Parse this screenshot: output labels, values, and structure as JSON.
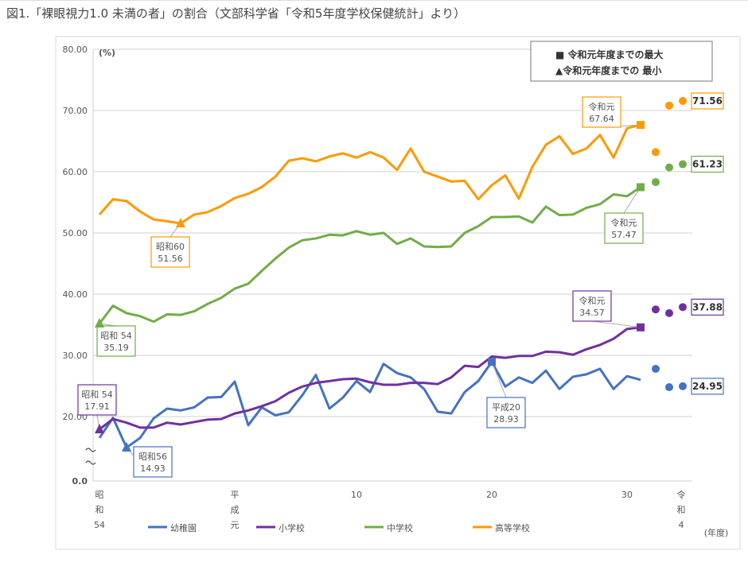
{
  "title": "図1.「裸眼視力1.0 未満の者」の割合（文部科学省「令和5年度学校保健統計」より）",
  "chart_data": {
    "type": "line",
    "title": "「裸眼視力1.0 未満の者」の割合",
    "ylabel": "(%)",
    "xlabel": "(年度)",
    "ylim": [
      0,
      80
    ],
    "axis_break": "0〜20",
    "yticks": [
      "80.00",
      "70.00",
      "60.00",
      "50.00",
      "40.00",
      "30.00",
      "20.00",
      "0.0"
    ],
    "ytick_values": [
      80,
      70,
      60,
      50,
      40,
      30,
      20,
      0
    ],
    "x_years": [
      1979,
      1980,
      1981,
      1982,
      1983,
      1984,
      1985,
      1986,
      1987,
      1988,
      1989,
      1990,
      1991,
      1992,
      1993,
      1994,
      1995,
      1996,
      1997,
      1998,
      1999,
      2000,
      2001,
      2002,
      2003,
      2004,
      2005,
      2006,
      2007,
      2008,
      2009,
      2010,
      2011,
      2012,
      2013,
      2014,
      2015,
      2016,
      2017,
      2018,
      2019,
      2020,
      2021,
      2022
    ],
    "xticks": [
      {
        "year": 1979,
        "label": [
          "昭",
          "和",
          "54"
        ]
      },
      {
        "year": 1989,
        "label": [
          "平",
          "成",
          "元"
        ]
      },
      {
        "year": 1998,
        "label": [
          "10"
        ]
      },
      {
        "year": 2008,
        "label": [
          "20"
        ]
      },
      {
        "year": 2018,
        "label": [
          "30"
        ]
      },
      {
        "year": 2022,
        "label": [
          "令",
          "和",
          "4"
        ]
      }
    ],
    "grid": true,
    "legend_position": "bottom",
    "marker_legend": {
      "max": "■ 令和元年度までの最大",
      "min": "▲令和元年度までの 最小"
    },
    "series": [
      {
        "name": "幼稚園",
        "color": "#4472C4",
        "values": [
          16.5,
          19.8,
          14.93,
          16.5,
          19.7,
          21.3,
          21.0,
          21.5,
          23.1,
          23.2,
          25.7,
          18.6,
          21.5,
          20.2,
          20.7,
          23.5,
          26.8,
          21.3,
          23.1,
          25.8,
          24.0,
          28.6,
          27.1,
          26.4,
          24.5,
          20.8,
          20.5,
          24.0,
          25.8,
          28.93,
          24.9,
          26.4,
          25.5,
          27.5,
          24.5,
          26.5,
          26.9,
          27.8,
          24.5,
          26.6,
          26.0
        ],
        "later": [
          27.8,
          24.8,
          24.95
        ]
      },
      {
        "name": "小学校",
        "color": "#7030A0",
        "values": [
          17.91,
          19.6,
          19.0,
          18.2,
          18.2,
          19.0,
          18.7,
          19.1,
          19.5,
          19.6,
          20.5,
          21.0,
          21.7,
          22.5,
          23.9,
          24.9,
          25.5,
          25.8,
          26.1,
          26.2,
          25.6,
          25.2,
          25.2,
          25.5,
          25.5,
          25.3,
          26.4,
          28.3,
          28.1,
          29.8,
          29.6,
          29.9,
          29.9,
          30.6,
          30.5,
          30.1,
          31.0,
          31.7,
          32.7,
          34.3,
          34.57
        ],
        "later": [
          37.5,
          36.9,
          37.88
        ]
      },
      {
        "name": "中学校",
        "color": "#70AD47",
        "values": [
          35.19,
          38.1,
          36.9,
          36.4,
          35.5,
          36.7,
          36.6,
          37.2,
          38.4,
          39.4,
          40.9,
          41.7,
          43.8,
          45.8,
          47.6,
          48.8,
          49.1,
          49.7,
          49.6,
          50.3,
          49.7,
          50.0,
          48.2,
          49.1,
          47.8,
          47.7,
          47.8,
          50.0,
          51.1,
          52.6,
          52.6,
          52.7,
          51.7,
          54.3,
          52.9,
          53.0,
          54.1,
          54.7,
          56.3,
          56.0,
          57.47
        ],
        "later": [
          58.3,
          60.7,
          61.23
        ]
      },
      {
        "name": "高等学校",
        "color": "#FF9900",
        "values": [
          53.0,
          55.5,
          55.2,
          53.5,
          52.2,
          51.9,
          51.56,
          53.0,
          53.4,
          54.4,
          55.7,
          56.4,
          57.5,
          59.2,
          61.8,
          62.2,
          61.7,
          62.5,
          63.0,
          62.3,
          63.2,
          62.3,
          60.3,
          63.8,
          60.0,
          59.2,
          58.4,
          58.5,
          55.5,
          57.8,
          59.4,
          55.6,
          60.8,
          64.4,
          65.8,
          62.9,
          63.8,
          66.0,
          62.3,
          67.1,
          67.64
        ],
        "later": [
          63.2,
          70.8,
          71.56
        ]
      }
    ],
    "annotations": [
      {
        "series": 3,
        "year": 1985,
        "marker": "min",
        "line1": "昭和60",
        "line2": "51.56"
      },
      {
        "series": 3,
        "year": 2019,
        "marker": "max",
        "line1": "令和元",
        "line2": "67.64"
      },
      {
        "series": 2,
        "year": 2019,
        "marker": "max",
        "line1": "令和元",
        "line2": "57.47"
      },
      {
        "series": 2,
        "year": 1979,
        "marker": "min",
        "line1": "昭和 54",
        "line2": "35.19"
      },
      {
        "series": 1,
        "year": 2019,
        "marker": "max",
        "line1": "令和元",
        "line2": "34.57"
      },
      {
        "series": 1,
        "year": 1979,
        "marker": "min",
        "line1": "昭和 54",
        "line2": "17.91"
      },
      {
        "series": 0,
        "year": 2008,
        "marker": "max",
        "line1": "平成20",
        "line2": "28.93"
      },
      {
        "series": 0,
        "year": 1981,
        "marker": "min",
        "line1": "昭和56",
        "line2": "14.93"
      }
    ],
    "final_labels": [
      "24.95",
      "37.88",
      "61.23",
      "71.56"
    ]
  }
}
